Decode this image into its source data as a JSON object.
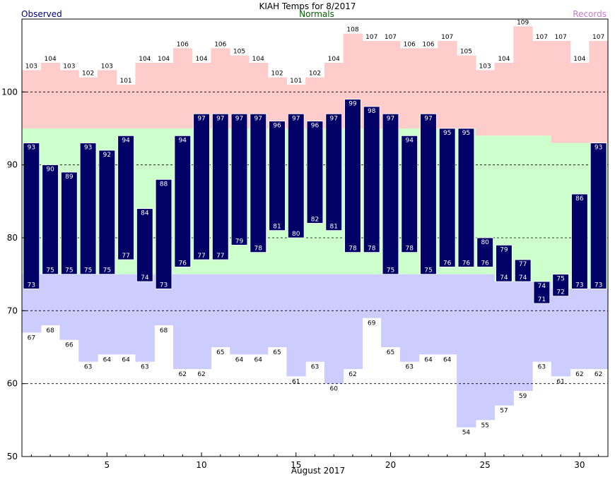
{
  "chart_data": {
    "type": "bar",
    "title": "KIAH Temps for 8/2017",
    "legend": {
      "observed": "Observed",
      "normals": "Normals",
      "records": "Records"
    },
    "xlabel": "August 2017",
    "ylabel": "",
    "ylim": [
      50,
      110
    ],
    "yticks": [
      50,
      60,
      70,
      80,
      90,
      100
    ],
    "xticks": [
      5,
      10,
      15,
      20,
      25,
      30
    ],
    "grid": true,
    "days": [
      1,
      2,
      3,
      4,
      5,
      6,
      7,
      8,
      9,
      10,
      11,
      12,
      13,
      14,
      15,
      16,
      17,
      18,
      19,
      20,
      21,
      22,
      23,
      24,
      25,
      26,
      27,
      28,
      29,
      30,
      31
    ],
    "series": [
      {
        "name": "Observed",
        "role": "observed_high",
        "values": [
          93,
          90,
          89,
          93,
          92,
          94,
          84,
          88,
          94,
          97,
          97,
          97,
          97,
          96,
          97,
          96,
          97,
          99,
          98,
          97,
          94,
          97,
          95,
          95,
          80,
          79,
          77,
          74,
          75,
          86,
          93
        ]
      },
      {
        "name": "Observed",
        "role": "observed_low",
        "values": [
          73,
          75,
          75,
          75,
          75,
          77,
          74,
          73,
          76,
          77,
          77,
          79,
          78,
          81,
          80,
          82,
          81,
          78,
          78,
          75,
          78,
          75,
          76,
          76,
          76,
          74,
          74,
          71,
          72,
          73,
          73
        ]
      },
      {
        "name": "Records",
        "role": "record_high",
        "values": [
          103,
          104,
          103,
          102,
          103,
          101,
          104,
          104,
          106,
          104,
          106,
          105,
          104,
          102,
          101,
          102,
          104,
          108,
          107,
          107,
          106,
          106,
          107,
          105,
          103,
          104,
          109,
          107,
          107,
          104,
          107
        ]
      },
      {
        "name": "Records",
        "role": "record_low",
        "values": [
          67,
          68,
          66,
          63,
          64,
          64,
          63,
          68,
          62,
          62,
          65,
          64,
          64,
          65,
          61,
          63,
          60,
          62,
          69,
          65,
          63,
          64,
          64,
          54,
          55,
          57,
          59,
          63,
          61,
          62,
          62
        ]
      },
      {
        "name": "Normals",
        "role": "normal_high",
        "values": [
          95,
          95,
          95,
          95,
          95,
          95,
          95,
          95,
          95,
          95,
          95,
          95,
          95,
          95,
          95,
          95,
          95,
          95,
          95,
          95,
          95,
          95,
          95,
          95,
          94,
          94,
          94,
          94,
          93,
          93,
          93
        ]
      },
      {
        "name": "Normals",
        "role": "normal_low",
        "values": [
          75,
          75,
          75,
          75,
          75,
          75,
          75,
          75,
          75,
          75,
          75,
          75,
          75,
          75,
          75,
          75,
          75,
          75,
          75,
          75,
          75,
          75,
          75,
          75,
          75,
          74,
          74,
          74,
          73,
          73,
          73
        ]
      }
    ],
    "colors": {
      "observed": "#000066",
      "record_high_band": "#ffcccc",
      "normal_band": "#ccffcc",
      "record_low_band": "#ccccff",
      "gridline": "#000000"
    }
  }
}
